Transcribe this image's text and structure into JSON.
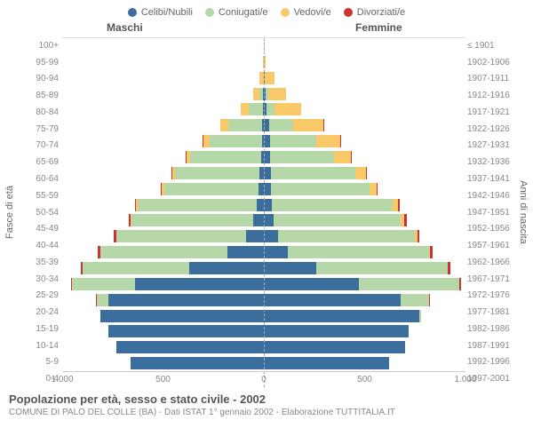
{
  "type": "population-pyramid",
  "legend": [
    {
      "label": "Celibi/Nubili",
      "color": "#3b6e9c"
    },
    {
      "label": "Coniugati/e",
      "color": "#b6d7a8"
    },
    {
      "label": "Vedovi/e",
      "color": "#f9c869"
    },
    {
      "label": "Divorziati/e",
      "color": "#cc3333"
    }
  ],
  "header_male": "Maschi",
  "header_female": "Femmine",
  "ylabel_left": "Fasce di età",
  "ylabel_right": "Anni di nascita",
  "xaxis": {
    "ticks": [
      "1.000",
      "500",
      "0",
      "500",
      "1.000"
    ],
    "max": 1000
  },
  "rows": [
    {
      "age": "100+",
      "year": "≤ 1901",
      "m": [
        0,
        0,
        1,
        0
      ],
      "f": [
        0,
        0,
        2,
        0
      ]
    },
    {
      "age": "95-99",
      "year": "1902-1906",
      "m": [
        0,
        0,
        4,
        0
      ],
      "f": [
        0,
        0,
        10,
        0
      ]
    },
    {
      "age": "90-94",
      "year": "1907-1911",
      "m": [
        2,
        0,
        22,
        0
      ],
      "f": [
        3,
        2,
        50,
        0
      ]
    },
    {
      "age": "85-89",
      "year": "1912-1916",
      "m": [
        3,
        20,
        30,
        0
      ],
      "f": [
        10,
        10,
        90,
        0
      ]
    },
    {
      "age": "80-84",
      "year": "1917-1921",
      "m": [
        5,
        70,
        40,
        0
      ],
      "f": [
        15,
        40,
        130,
        0
      ]
    },
    {
      "age": "75-79",
      "year": "1922-1926",
      "m": [
        8,
        170,
        40,
        0
      ],
      "f": [
        25,
        120,
        150,
        2
      ]
    },
    {
      "age": "70-74",
      "year": "1927-1931",
      "m": [
        10,
        260,
        30,
        2
      ],
      "f": [
        30,
        230,
        120,
        3
      ]
    },
    {
      "age": "65-69",
      "year": "1932-1936",
      "m": [
        15,
        350,
        20,
        3
      ],
      "f": [
        30,
        320,
        80,
        4
      ]
    },
    {
      "age": "60-64",
      "year": "1937-1941",
      "m": [
        20,
        420,
        15,
        4
      ],
      "f": [
        35,
        420,
        50,
        5
      ]
    },
    {
      "age": "55-59",
      "year": "1942-1946",
      "m": [
        25,
        470,
        10,
        5
      ],
      "f": [
        35,
        490,
        35,
        6
      ]
    },
    {
      "age": "50-54",
      "year": "1947-1951",
      "m": [
        35,
        590,
        8,
        6
      ],
      "f": [
        40,
        600,
        25,
        8
      ]
    },
    {
      "age": "45-49",
      "year": "1952-1956",
      "m": [
        55,
        600,
        5,
        8
      ],
      "f": [
        50,
        630,
        18,
        10
      ]
    },
    {
      "age": "40-44",
      "year": "1957-1961",
      "m": [
        90,
        640,
        3,
        10
      ],
      "f": [
        70,
        680,
        10,
        12
      ]
    },
    {
      "age": "35-39",
      "year": "1962-1966",
      "m": [
        180,
        630,
        2,
        10
      ],
      "f": [
        120,
        700,
        6,
        12
      ]
    },
    {
      "age": "30-34",
      "year": "1967-1971",
      "m": [
        370,
        530,
        1,
        8
      ],
      "f": [
        260,
        650,
        3,
        10
      ]
    },
    {
      "age": "25-29",
      "year": "1972-1976",
      "m": [
        640,
        310,
        0,
        5
      ],
      "f": [
        470,
        500,
        1,
        6
      ]
    },
    {
      "age": "20-24",
      "year": "1977-1981",
      "m": [
        770,
        60,
        0,
        1
      ],
      "f": [
        680,
        140,
        0,
        2
      ]
    },
    {
      "age": "15-19",
      "year": "1982-1986",
      "m": [
        810,
        2,
        0,
        0
      ],
      "f": [
        770,
        8,
        0,
        0
      ]
    },
    {
      "age": "10-14",
      "year": "1987-1991",
      "m": [
        770,
        0,
        0,
        0
      ],
      "f": [
        720,
        0,
        0,
        0
      ]
    },
    {
      "age": "5-9",
      "year": "1992-1996",
      "m": [
        730,
        0,
        0,
        0
      ],
      "f": [
        700,
        0,
        0,
        0
      ]
    },
    {
      "age": "0-4",
      "year": "1997-2001",
      "m": [
        660,
        0,
        0,
        0
      ],
      "f": [
        620,
        0,
        0,
        0
      ]
    }
  ],
  "title": "Popolazione per età, sesso e stato civile - 2002",
  "subtitle": "COMUNE DI PALO DEL COLLE (BA) - Dati ISTAT 1° gennaio 2002 - Elaborazione TUTTITALIA.IT",
  "background_color": "#ffffff",
  "grid_color": "#dddddd"
}
